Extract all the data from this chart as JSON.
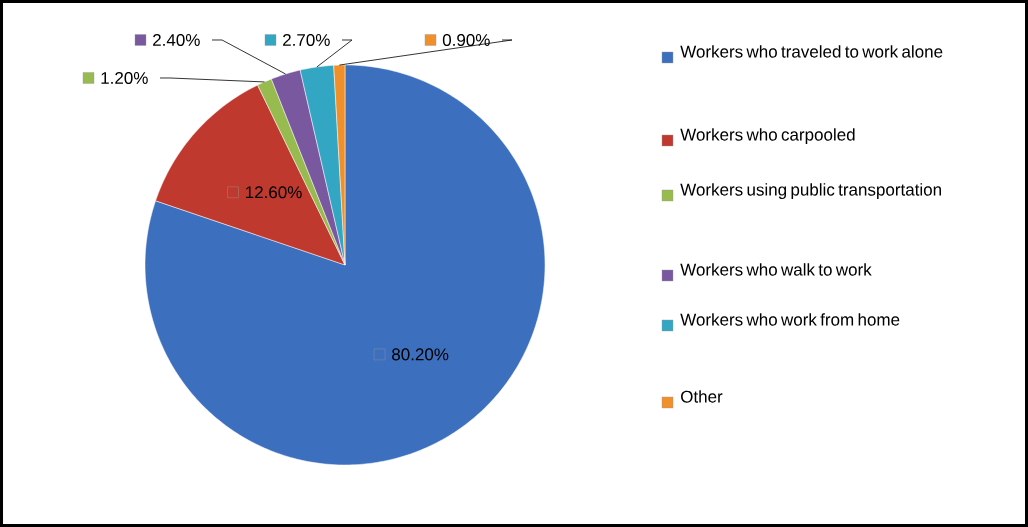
{
  "chart_data": {
    "type": "pie",
    "categories": [
      "Workers who traveled to work alone",
      "Workers who carpooled",
      "Workers using public transportation",
      "Workers who walk to work",
      "Workers who work from home",
      "Other"
    ],
    "values": [
      80.2,
      12.6,
      1.2,
      2.4,
      2.7,
      0.9
    ],
    "colors": [
      "#3d6fbf",
      "#c0392e",
      "#98bb4f",
      "#7a58a0",
      "#33a6c4",
      "#f0902a"
    ],
    "value_labels": [
      "80.20%",
      "12.60%",
      "1.20%",
      "2.40%",
      "2.70%",
      "0.90%"
    ],
    "legend": "right"
  }
}
